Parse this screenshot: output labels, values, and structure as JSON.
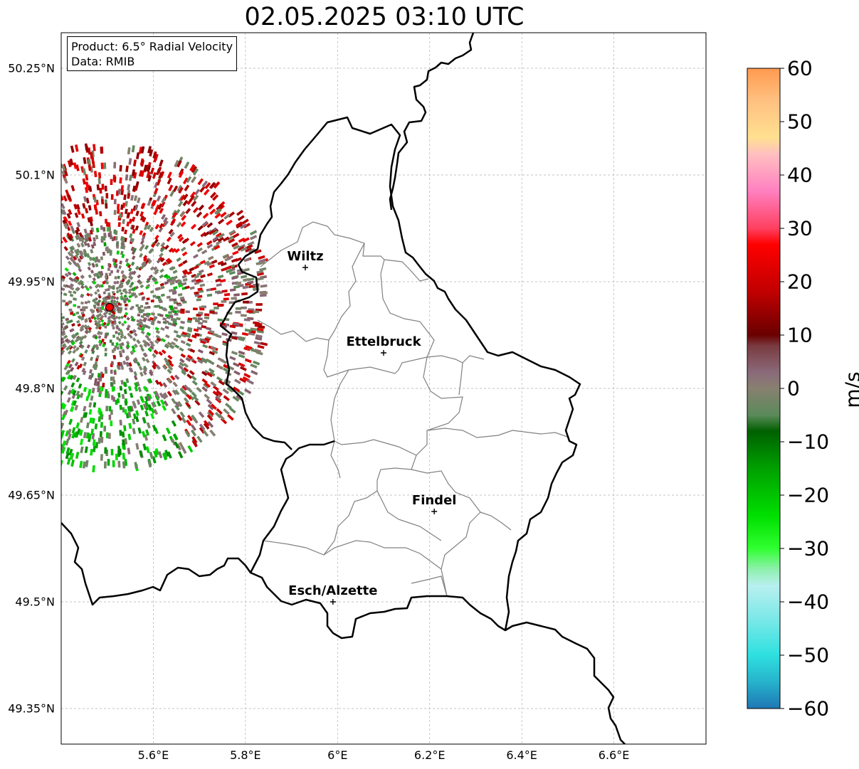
{
  "title": "02.05.2025 03:10 UTC",
  "info": {
    "product": "Product: 6.5° Radial Velocity",
    "data": "Data: RMIB"
  },
  "chart_data": {
    "type": "radar-map",
    "lon_range": [
      5.4,
      6.8
    ],
    "lat_range": [
      49.3,
      50.3
    ],
    "lat_ticks": [
      "50.25°N",
      "50.1°N",
      "49.95°N",
      "49.8°N",
      "49.65°N",
      "49.5°N",
      "49.35°N"
    ],
    "lat_values": [
      50.25,
      50.1,
      49.95,
      49.8,
      49.65,
      49.5,
      49.35
    ],
    "lon_ticks": [
      "5.6°E",
      "5.8°E",
      "6°E",
      "6.2°E",
      "6.4°E",
      "6.6°E"
    ],
    "lon_values": [
      5.6,
      5.8,
      6.0,
      6.2,
      6.4,
      6.6
    ],
    "gridlines": true,
    "radar_site": {
      "lon": 5.505,
      "lat": 49.914
    },
    "cities": [
      {
        "name": "Wiltz",
        "lon": 5.93,
        "lat": 49.97
      },
      {
        "name": "Ettelbruck",
        "lon": 6.1,
        "lat": 49.85
      },
      {
        "name": "Findel",
        "lon": 6.21,
        "lat": 49.627
      },
      {
        "name": "Esch/Alzette",
        "lon": 5.99,
        "lat": 49.5
      }
    ],
    "colorbar": {
      "unit": "m/s",
      "min": -60,
      "max": 60,
      "ticks": [
        "60",
        "50",
        "40",
        "30",
        "20",
        "10",
        "0",
        "−10",
        "−20",
        "−30",
        "−40",
        "−50",
        "−60"
      ],
      "tick_values": [
        60,
        50,
        40,
        30,
        20,
        10,
        0,
        -10,
        -20,
        -30,
        -40,
        -50,
        -60
      ],
      "stops": [
        {
          "v": -60,
          "c": "#1f77b4"
        },
        {
          "v": -55,
          "c": "#26b3cc"
        },
        {
          "v": -50,
          "c": "#2ee0e0"
        },
        {
          "v": -43,
          "c": "#7ee8e8"
        },
        {
          "v": -37,
          "c": "#b8f0f0"
        },
        {
          "v": -34,
          "c": "#90f0b0"
        },
        {
          "v": -30,
          "c": "#30ff30"
        },
        {
          "v": -24,
          "c": "#00e000"
        },
        {
          "v": -15,
          "c": "#00a000"
        },
        {
          "v": -8,
          "c": "#006000"
        },
        {
          "v": -5,
          "c": "#5a8a5a"
        },
        {
          "v": 0,
          "c": "#888070"
        },
        {
          "v": 3,
          "c": "#8a6a7a"
        },
        {
          "v": 8,
          "c": "#7a3a40"
        },
        {
          "v": 10,
          "c": "#6a0000"
        },
        {
          "v": 18,
          "c": "#c00000"
        },
        {
          "v": 27,
          "c": "#ff0000"
        },
        {
          "v": 30,
          "c": "#ff4060"
        },
        {
          "v": 37,
          "c": "#ff80c0"
        },
        {
          "v": 44,
          "c": "#ffc0c0"
        },
        {
          "v": 47,
          "c": "#ffe090"
        },
        {
          "v": 54,
          "c": "#ffc080"
        },
        {
          "v": 60,
          "c": "#ff9a50"
        }
      ]
    }
  },
  "colors": {
    "border": "#000000",
    "canton": "#808080",
    "grid": "#b0b0b0",
    "radar_site": "#ff0000"
  }
}
